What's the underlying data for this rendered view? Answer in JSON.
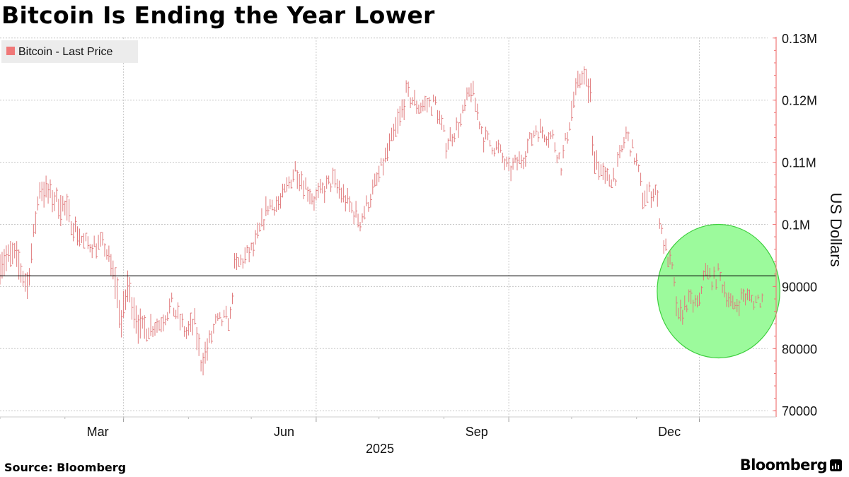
{
  "title": "Bitcoin Is Ending the Year Lower",
  "source": "Source: Bloomberg",
  "brand": "Bloomberg",
  "colors": {
    "series": "#e0797b",
    "legend_swatch": "#f07878",
    "grid": "#c8c8c8",
    "axis": "#f07878",
    "highlight_fill": "#9cfa9c",
    "highlight_stroke": "#3ecf3e",
    "reference_line": "#000000"
  },
  "chart_data": {
    "type": "ohlc",
    "legend": [
      "Bitcoin - Last Price"
    ],
    "legend_position": "top-left",
    "ylabel": "US Dollars",
    "y_axis_side": "right",
    "ylim": [
      69000,
      131000
    ],
    "yticks": [
      70000,
      80000,
      90000,
      100000,
      110000,
      120000,
      130000
    ],
    "ytick_labels": [
      "70000",
      "80000",
      "90000",
      "0.1M",
      "0.11M",
      "0.12M",
      "0.13M"
    ],
    "xticks": [
      "Mar",
      "Jun",
      "Sep",
      "Dec"
    ],
    "xtick_year": "2025",
    "x_range_days": [
      0,
      364
    ],
    "grid": true,
    "reference_line": 91700,
    "highlight_region": {
      "shape": "circle",
      "from": "2025-11-21",
      "to": "2025-12-31",
      "y_range": [
        78500,
        100000
      ]
    },
    "anchors": [
      [
        "2025-01-01",
        94000,
        6000
      ],
      [
        "2025-01-08",
        95000,
        6000
      ],
      [
        "2025-01-14",
        90000,
        6000
      ],
      [
        "2025-01-20",
        106000,
        5000
      ],
      [
        "2025-01-31",
        103000,
        6000
      ],
      [
        "2025-02-10",
        97000,
        3000
      ],
      [
        "2025-02-20",
        96500,
        3000
      ],
      [
        "2025-02-25",
        91000,
        6000
      ],
      [
        "2025-02-28",
        84000,
        7000
      ],
      [
        "2025-03-03",
        90000,
        8000
      ],
      [
        "2025-03-09",
        83000,
        6000
      ],
      [
        "2025-03-18",
        84000,
        3000
      ],
      [
        "2025-03-24",
        87000,
        4000
      ],
      [
        "2025-03-31",
        82500,
        3000
      ],
      [
        "2025-04-04",
        84000,
        5000
      ],
      [
        "2025-04-07",
        78000,
        4000
      ],
      [
        "2025-04-09",
        79000,
        5000
      ],
      [
        "2025-04-14",
        84000,
        3000
      ],
      [
        "2025-04-21",
        85000,
        3000
      ],
      [
        "2025-04-23",
        93000,
        4000
      ],
      [
        "2025-05-02",
        96000,
        3000
      ],
      [
        "2025-05-09",
        103000,
        4000
      ],
      [
        "2025-05-15",
        103500,
        3000
      ],
      [
        "2025-05-22",
        109000,
        4000
      ],
      [
        "2025-05-31",
        104000,
        3000
      ],
      [
        "2025-06-09",
        107000,
        4000
      ],
      [
        "2025-06-22",
        100500,
        4000
      ],
      [
        "2025-06-30",
        107000,
        3000
      ],
      [
        "2025-07-11",
        117000,
        5000
      ],
      [
        "2025-07-14",
        121000,
        4000
      ],
      [
        "2025-07-20",
        119000,
        3000
      ],
      [
        "2025-07-28",
        119500,
        3000
      ],
      [
        "2025-08-02",
        113000,
        3000
      ],
      [
        "2025-08-09",
        116500,
        3000
      ],
      [
        "2025-08-14",
        122000,
        4000
      ],
      [
        "2025-08-20",
        114000,
        3000
      ],
      [
        "2025-08-27",
        112000,
        3000
      ],
      [
        "2025-09-01",
        108500,
        3000
      ],
      [
        "2025-09-08",
        111000,
        3000
      ],
      [
        "2025-09-14",
        115500,
        3000
      ],
      [
        "2025-09-22",
        114000,
        3000
      ],
      [
        "2025-09-26",
        109500,
        3000
      ],
      [
        "2025-10-02",
        120000,
        4000
      ],
      [
        "2025-10-06",
        124500,
        4000
      ],
      [
        "2025-10-10",
        121000,
        5000
      ],
      [
        "2025-10-11",
        112000,
        6000
      ],
      [
        "2025-10-17",
        107000,
        4000
      ],
      [
        "2025-10-22",
        108000,
        3000
      ],
      [
        "2025-10-27",
        114500,
        3000
      ],
      [
        "2025-11-01",
        110000,
        3000
      ],
      [
        "2025-11-04",
        104500,
        4000
      ],
      [
        "2025-11-10",
        105500,
        3000
      ],
      [
        "2025-11-14",
        97000,
        4000
      ],
      [
        "2025-11-18",
        92500,
        3000
      ],
      [
        "2025-11-21",
        84500,
        5000
      ],
      [
        "2025-11-25",
        87500,
        3000
      ],
      [
        "2025-12-01",
        87000,
        3000
      ],
      [
        "2025-12-03",
        92500,
        3000
      ],
      [
        "2025-12-08",
        91000,
        3000
      ],
      [
        "2025-12-10",
        92000,
        3000
      ],
      [
        "2025-12-14",
        89000,
        3000
      ],
      [
        "2025-12-17",
        86500,
        3000
      ],
      [
        "2025-12-22",
        88500,
        3000
      ],
      [
        "2025-12-27",
        87800,
        2000
      ],
      [
        "2025-12-31",
        88000,
        2000
      ]
    ]
  }
}
